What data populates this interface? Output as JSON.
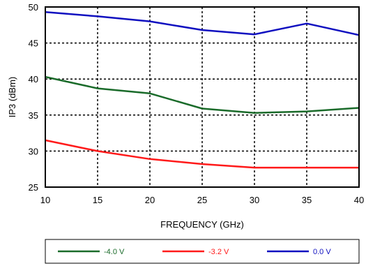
{
  "chart_data": {
    "type": "line",
    "xlabel": "FREQUENCY (GHz)",
    "ylabel": "IP3 (dBm)",
    "xlim": [
      10,
      40
    ],
    "ylim": [
      25,
      50
    ],
    "xticks": [
      10,
      15,
      20,
      25,
      30,
      35,
      40
    ],
    "yticks": [
      25,
      30,
      35,
      40,
      45,
      50
    ],
    "grid": "dashed",
    "legend_position": "bottom",
    "series": [
      {
        "name": "-4.0 V",
        "color": "#1a6b2a",
        "x": [
          10,
          15,
          20,
          25,
          30,
          35,
          40
        ],
        "y": [
          40.3,
          38.7,
          38.0,
          35.9,
          35.3,
          35.5,
          36.0
        ]
      },
      {
        "name": "-3.2 V",
        "color": "#ff1a1a",
        "x": [
          10,
          15,
          20,
          25,
          30,
          35,
          40
        ],
        "y": [
          31.5,
          30.0,
          28.9,
          28.2,
          27.7,
          27.7,
          27.7
        ]
      },
      {
        "name": "0.0 V",
        "color": "#1010c0",
        "x": [
          10,
          15,
          20,
          25,
          30,
          35,
          40
        ],
        "y": [
          49.3,
          48.7,
          48.0,
          46.8,
          46.2,
          47.7,
          46.1
        ]
      }
    ]
  }
}
